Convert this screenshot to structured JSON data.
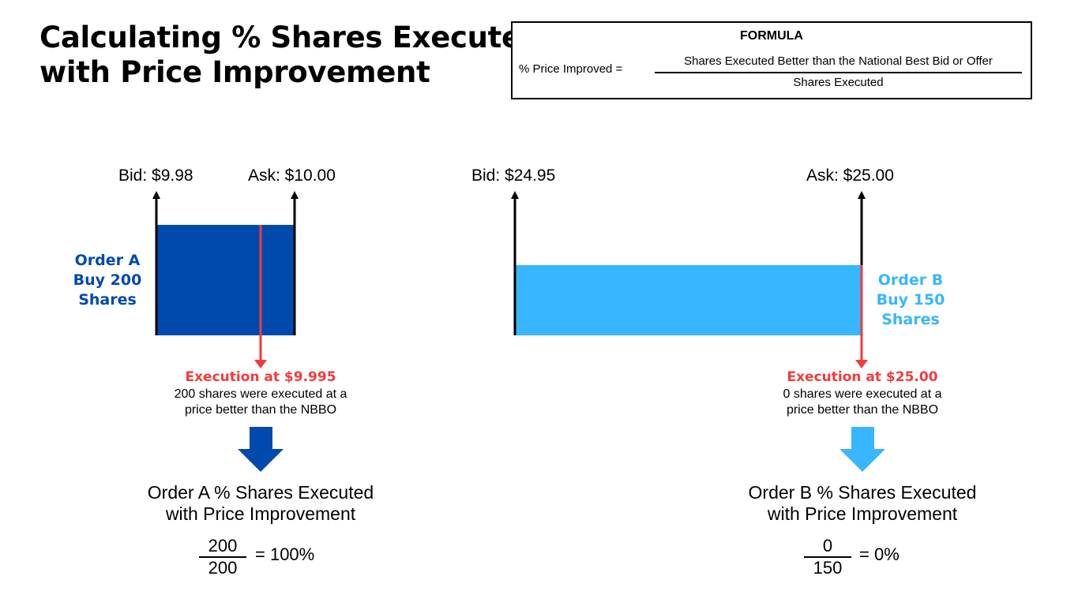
{
  "title": {
    "line1": "Calculating % Shares Executed",
    "line2": "with Price Improvement"
  },
  "formula": {
    "heading": "FORMULA",
    "lhs": "% Price Improved =",
    "numerator": "Shares Executed Better than the National Best Bid or Offer",
    "denominator": "Shares Executed"
  },
  "order_a": {
    "bid_label": "Bid: $9.98",
    "ask_label": "Ask: $10.00",
    "label_line1": "Order A",
    "label_line2": "Buy 200",
    "label_line3": "Shares",
    "execution_title": "Execution at $9.995",
    "execution_desc_line1": "200 shares were executed at a",
    "execution_desc_line2": "price better than the NBBO",
    "result_heading_line1": "Order A % Shares Executed",
    "result_heading_line2": "with Price Improvement",
    "numerator": "200",
    "denominator": "200",
    "result": "= 100%"
  },
  "order_b": {
    "bid_label": "Bid: $24.95",
    "ask_label": "Ask: $25.00",
    "label_line1": "Order B",
    "label_line2": "Buy 150",
    "label_line3": "Shares",
    "execution_title": "Execution at $25.00",
    "execution_desc_line1": "0 shares were executed at a",
    "execution_desc_line2": "price better than the NBBO",
    "result_heading_line1": "Order B % Shares Executed",
    "result_heading_line2": "with Price Improvement",
    "numerator": "0",
    "denominator": "150",
    "result": "= 0%"
  },
  "colors": {
    "order_a": "#004aad",
    "order_b": "#38b6ff",
    "execution": "#f23b3b",
    "text": "#000000"
  }
}
